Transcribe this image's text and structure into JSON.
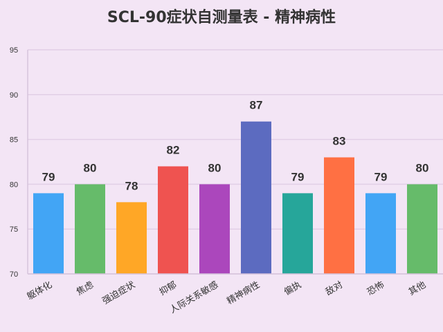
{
  "chart_data": {
    "type": "bar",
    "title": "SCL-90症状自测量表 - 精神病性",
    "xlabel": "",
    "ylabel": "",
    "categories": [
      "躯体化",
      "焦虑",
      "强迫症状",
      "抑郁",
      "人际关系敏感",
      "精神病性",
      "偏执",
      "敌对",
      "恐怖",
      "其他"
    ],
    "values": [
      79,
      80,
      78,
      82,
      80,
      87,
      79,
      83,
      79,
      80
    ],
    "colors": [
      "#42a5f5",
      "#66bb6a",
      "#ffa726",
      "#ef5350",
      "#ab47bc",
      "#5c6bc0",
      "#26a69a",
      "#ff7043",
      "#42a5f5",
      "#66bb6a"
    ],
    "ylim": [
      70,
      95
    ],
    "yticks": [
      70,
      75,
      80,
      85,
      90,
      95
    ],
    "grid": true,
    "legend": "none",
    "data_labels": true
  }
}
